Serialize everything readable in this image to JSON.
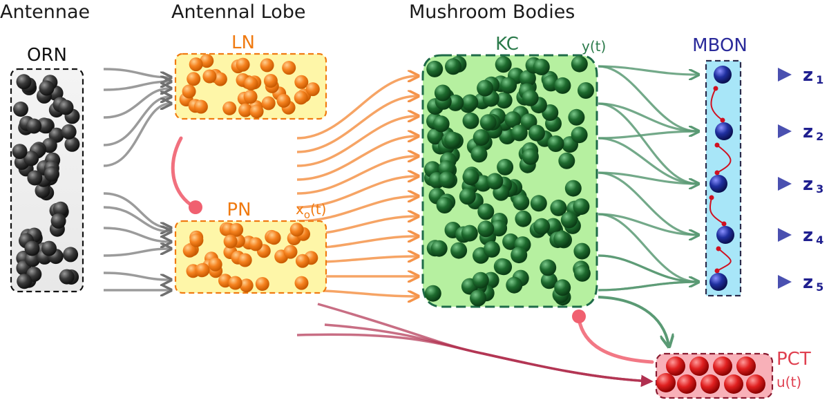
{
  "sections": {
    "antennae": "Antennae",
    "antennal_lobe": "Antennal Lobe",
    "mushroom_bodies": "Mushroom Bodies"
  },
  "nodes": {
    "orn": "ORN",
    "ln": "LN",
    "pn": "PN",
    "kc": "KC",
    "mbon": "MBON",
    "pct": "PCT"
  },
  "signals": {
    "xo_main": "x",
    "xo_sub": "o",
    "xo_tail": "(t)",
    "y": "y(t)",
    "u": "u(t)"
  },
  "outputs": [
    {
      "main": "z",
      "sub": "1"
    },
    {
      "main": "z",
      "sub": "2"
    },
    {
      "main": "z",
      "sub": "3"
    },
    {
      "main": "z",
      "sub": "4"
    },
    {
      "main": "z",
      "sub": "5"
    }
  ],
  "colors": {
    "orn_neuron": "#2a2a2a",
    "ln_pn_neuron": "#f5821f",
    "kc_neuron": "#1e6b2e",
    "mbon_neuron": "#1f2a9a",
    "pct_neuron": "#d42020",
    "ln_pn_label": "#f07a10",
    "kc_label": "#2a7a4a",
    "mbon_label": "#2a2a9a",
    "pct_label": "#e04050",
    "inhibit": "#f06070"
  }
}
